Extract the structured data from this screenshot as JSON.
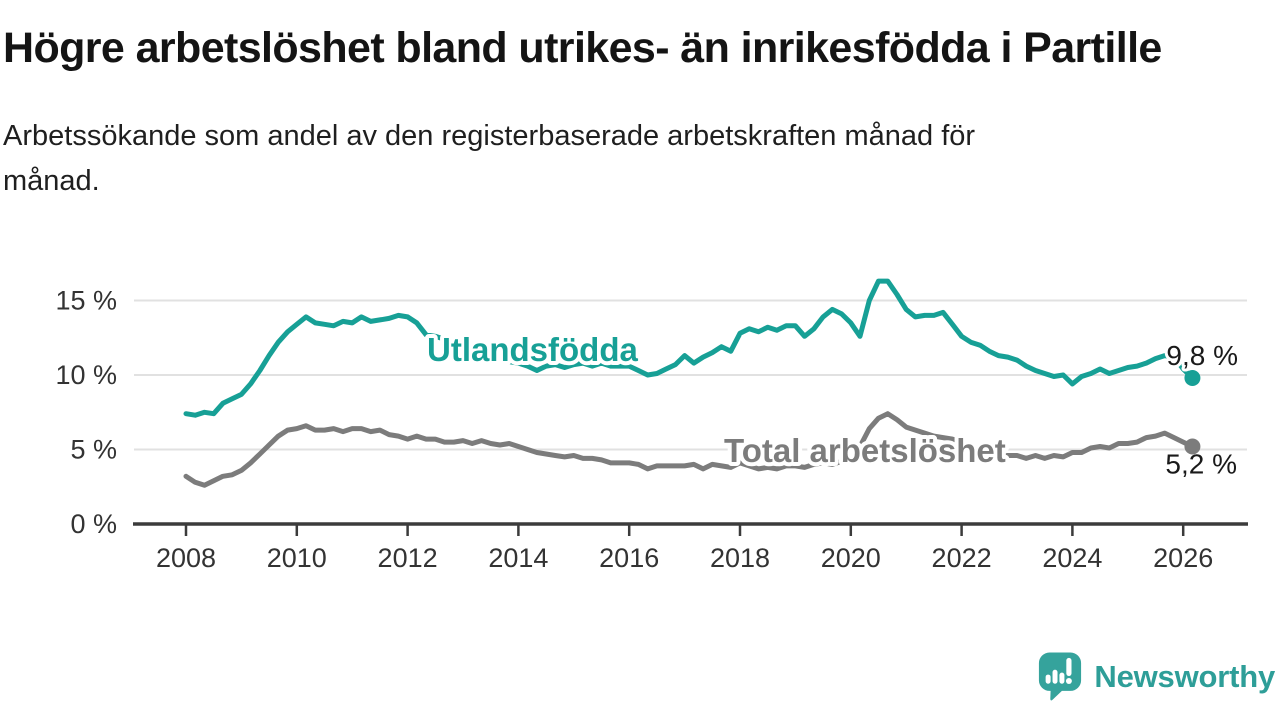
{
  "title": "Högre arbetslöshet bland utrikes- än inrikesfödda i Partille",
  "subtitle": "Arbetssökande som andel av den registerbaserade arbetskraften månad för månad.",
  "subtitle_lines": [
    "Arbetssökande som andel av den registerbaserade arbetskraften månad för",
    "månad."
  ],
  "branding": {
    "logo_text": "Newsworthy",
    "logo_icon": "speech-bubble-bar-chart-exclamation",
    "logo_color": "#35a39c"
  },
  "chart_data": {
    "type": "line",
    "title": "Högre arbetslöshet bland utrikes- än inrikesfödda i Partille",
    "ylabel": "",
    "xlabel": "",
    "grid": "horizontal",
    "legend_position": "inline-labels",
    "x_start_year": 2008,
    "x_step_months": 2,
    "x_end_label": "2026",
    "x_axis": {
      "ticks": [
        2008,
        2010,
        2012,
        2014,
        2016,
        2018,
        2020,
        2022,
        2024,
        2026
      ]
    },
    "y_axis": {
      "values": [
        15,
        10,
        5,
        0
      ],
      "labels": [
        "15 %",
        "10 %",
        "5 %",
        "0 %"
      ],
      "ylim": [
        0,
        17
      ]
    },
    "series": [
      {
        "name": "Utlandsfödda",
        "color": "#17a096",
        "end_label": "9,8 %",
        "end_value": 9.8,
        "values": [
          7.4,
          7.3,
          7.5,
          7.4,
          8.1,
          8.4,
          8.7,
          9.4,
          10.3,
          11.3,
          12.2,
          12.9,
          13.4,
          13.9,
          13.5,
          13.4,
          13.3,
          13.6,
          13.5,
          13.9,
          13.6,
          13.7,
          13.8,
          14.0,
          13.9,
          13.5,
          12.7,
          12.6,
          12.4,
          12.2,
          12.0,
          11.8,
          11.5,
          11.3,
          11.1,
          10.9,
          10.8,
          10.6,
          10.3,
          10.6,
          10.7,
          10.5,
          10.7,
          10.8,
          10.6,
          10.8,
          10.6,
          10.6,
          10.6,
          10.3,
          10.0,
          10.1,
          10.4,
          10.7,
          11.3,
          10.8,
          11.2,
          11.5,
          11.9,
          11.6,
          12.8,
          13.1,
          12.9,
          13.2,
          13.0,
          13.3,
          13.3,
          12.6,
          13.1,
          13.9,
          14.4,
          14.1,
          13.5,
          12.6,
          15.0,
          16.3,
          16.3,
          15.4,
          14.4,
          13.9,
          14.0,
          14.0,
          14.2,
          13.4,
          12.6,
          12.2,
          12.0,
          11.6,
          11.3,
          11.2,
          11.0,
          10.6,
          10.3,
          10.1,
          9.9,
          10.0,
          9.4,
          9.9,
          10.1,
          10.4,
          10.1,
          10.3,
          10.5,
          10.6,
          10.8,
          11.1,
          11.3,
          11.2,
          10.4,
          9.8
        ]
      },
      {
        "name": "Total arbetslöshet",
        "color": "#7c7c7c",
        "end_label": "5,2 %",
        "end_value": 5.2,
        "values": [
          3.2,
          2.8,
          2.6,
          2.9,
          3.2,
          3.3,
          3.6,
          4.1,
          4.7,
          5.3,
          5.9,
          6.3,
          6.4,
          6.6,
          6.3,
          6.3,
          6.4,
          6.2,
          6.4,
          6.4,
          6.2,
          6.3,
          6.0,
          5.9,
          5.7,
          5.9,
          5.7,
          5.7,
          5.5,
          5.5,
          5.6,
          5.4,
          5.6,
          5.4,
          5.3,
          5.4,
          5.2,
          5.0,
          4.8,
          4.7,
          4.6,
          4.5,
          4.6,
          4.4,
          4.4,
          4.3,
          4.1,
          4.1,
          4.1,
          4.0,
          3.7,
          3.9,
          3.9,
          3.9,
          3.9,
          4.0,
          3.7,
          4.0,
          3.9,
          3.8,
          4.1,
          3.9,
          3.7,
          3.8,
          3.7,
          3.9,
          3.9,
          3.8,
          4.0,
          4.1,
          4.0,
          4.2,
          4.5,
          5.2,
          6.4,
          7.1,
          7.4,
          7.0,
          6.5,
          6.3,
          6.1,
          5.9,
          5.8,
          5.7,
          5.5,
          5.2,
          5.0,
          4.9,
          4.5,
          4.6,
          4.6,
          4.4,
          4.6,
          4.4,
          4.6,
          4.5,
          4.8,
          4.8,
          5.1,
          5.2,
          5.1,
          5.4,
          5.4,
          5.5,
          5.8,
          5.9,
          6.1,
          5.8,
          5.5,
          5.2
        ]
      }
    ]
  }
}
